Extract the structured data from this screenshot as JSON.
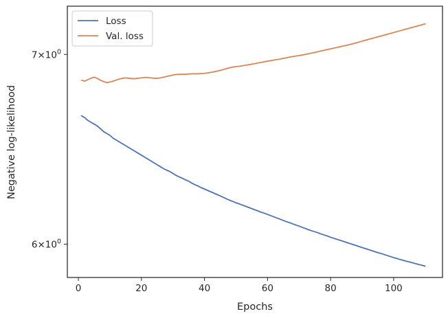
{
  "chart_data": {
    "type": "line",
    "title": "",
    "xlabel": "Epochs",
    "ylabel": "Negative log-likelihood",
    "yscale": "log",
    "xlim": [
      -3.5,
      115.5
    ],
    "ylim": [
      5.84,
      7.28
    ],
    "xticks": [
      0,
      20,
      40,
      60,
      80,
      100
    ],
    "xtick_labels": [
      "0",
      "20",
      "40",
      "60",
      "80",
      "100"
    ],
    "yticks": [
      6,
      7
    ],
    "ytick_labels": [
      {
        "base": "6",
        "rest": "×10",
        "exp": "0"
      },
      {
        "base": "7",
        "rest": "×10",
        "exp": "0"
      }
    ],
    "grid": false,
    "legend_position": "upper-left",
    "x": [
      1,
      2,
      3,
      4,
      5,
      6,
      7,
      8,
      9,
      10,
      11,
      12,
      13,
      14,
      15,
      16,
      17,
      18,
      19,
      20,
      21,
      22,
      23,
      24,
      25,
      26,
      27,
      28,
      29,
      30,
      31,
      32,
      33,
      34,
      35,
      36,
      37,
      38,
      39,
      40,
      41,
      42,
      43,
      44,
      45,
      46,
      47,
      48,
      49,
      50,
      51,
      52,
      53,
      54,
      55,
      56,
      57,
      58,
      59,
      60,
      61,
      62,
      63,
      64,
      65,
      66,
      67,
      68,
      69,
      70,
      71,
      72,
      73,
      74,
      75,
      76,
      77,
      78,
      79,
      80,
      81,
      82,
      83,
      84,
      85,
      86,
      87,
      88,
      89,
      90,
      91,
      92,
      93,
      94,
      95,
      96,
      97,
      98,
      99,
      100,
      101,
      102,
      103,
      104,
      105,
      106,
      107,
      108,
      109,
      110
    ],
    "series": [
      {
        "name": "Loss",
        "color": "#4c72b0",
        "values": [
          6.66,
          6.65,
          6.635,
          6.625,
          6.615,
          6.605,
          6.59,
          6.575,
          6.565,
          6.555,
          6.54,
          6.53,
          6.52,
          6.51,
          6.5,
          6.49,
          6.48,
          6.47,
          6.46,
          6.45,
          6.44,
          6.43,
          6.42,
          6.41,
          6.4,
          6.39,
          6.38,
          6.372,
          6.365,
          6.355,
          6.345,
          6.337,
          6.33,
          6.322,
          6.315,
          6.305,
          6.297,
          6.29,
          6.282,
          6.275,
          6.268,
          6.261,
          6.254,
          6.247,
          6.24,
          6.233,
          6.225,
          6.218,
          6.212,
          6.205,
          6.2,
          6.194,
          6.188,
          6.182,
          6.176,
          6.17,
          6.164,
          6.158,
          6.153,
          6.147,
          6.141,
          6.135,
          6.129,
          6.123,
          6.117,
          6.111,
          6.106,
          6.1,
          6.094,
          6.089,
          6.083,
          6.077,
          6.071,
          6.066,
          6.061,
          6.056,
          6.05,
          6.045,
          6.04,
          6.034,
          6.029,
          6.024,
          6.019,
          6.014,
          6.009,
          6.004,
          5.999,
          5.994,
          5.989,
          5.984,
          5.979,
          5.974,
          5.969,
          5.964,
          5.959,
          5.955,
          5.95,
          5.945,
          5.94,
          5.935,
          5.931,
          5.926,
          5.922,
          5.918,
          5.914,
          5.91,
          5.906,
          5.902,
          5.898,
          5.894
        ]
      },
      {
        "name": "Val. loss",
        "color": "#dd8452",
        "values": [
          6.855,
          6.85,
          6.858,
          6.866,
          6.872,
          6.865,
          6.855,
          6.848,
          6.842,
          6.845,
          6.85,
          6.856,
          6.862,
          6.866,
          6.868,
          6.866,
          6.864,
          6.864,
          6.866,
          6.868,
          6.87,
          6.87,
          6.868,
          6.866,
          6.866,
          6.868,
          6.872,
          6.876,
          6.88,
          6.884,
          6.887,
          6.888,
          6.888,
          6.888,
          6.89,
          6.891,
          6.891,
          6.891,
          6.892,
          6.893,
          6.896,
          6.899,
          6.902,
          6.906,
          6.91,
          6.915,
          6.92,
          6.925,
          6.929,
          6.931,
          6.933,
          6.936,
          6.939,
          6.942,
          6.945,
          6.948,
          6.952,
          6.955,
          6.959,
          6.962,
          6.965,
          6.968,
          6.971,
          6.974,
          6.978,
          6.981,
          6.985,
          6.988,
          6.991,
          6.994,
          6.997,
          7.0,
          7.004,
          7.008,
          7.012,
          7.016,
          7.02,
          7.024,
          7.028,
          7.032,
          7.036,
          7.04,
          7.044,
          7.048,
          7.052,
          7.056,
          7.061,
          7.066,
          7.071,
          7.076,
          7.081,
          7.086,
          7.091,
          7.096,
          7.101,
          7.106,
          7.111,
          7.116,
          7.121,
          7.126,
          7.131,
          7.136,
          7.141,
          7.146,
          7.151,
          7.156,
          7.161,
          7.166,
          7.171,
          7.176
        ]
      }
    ]
  }
}
